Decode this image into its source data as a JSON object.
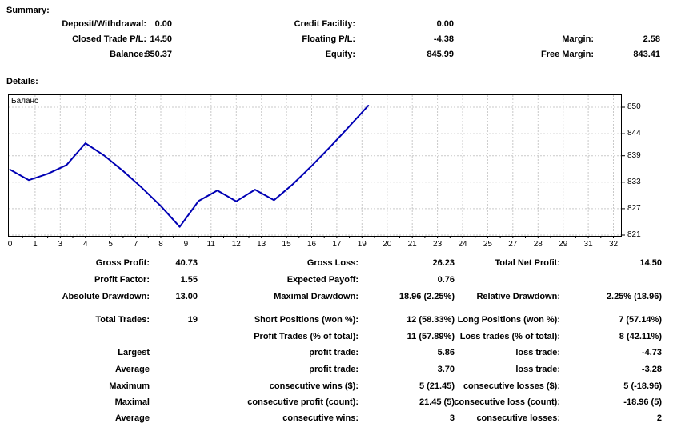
{
  "summary": {
    "heading": "Summary:",
    "col1": [
      {
        "label": "Deposit/Withdrawal:",
        "value": "0.00"
      },
      {
        "label": "Closed Trade P/L:",
        "value": "14.50"
      },
      {
        "label": "Balance:",
        "value": "850.37"
      }
    ],
    "col2": [
      {
        "label": "Credit Facility:",
        "value": "0.00"
      },
      {
        "label": "Floating P/L:",
        "value": "-4.38"
      },
      {
        "label": "Equity:",
        "value": "845.99"
      }
    ],
    "col3": [
      {
        "label": "Margin:",
        "value": "2.58"
      },
      {
        "label": "Free Margin:",
        "value": "843.41"
      }
    ]
  },
  "details": {
    "heading": "Details:",
    "rows": [
      {
        "c1": {
          "label": "Gross Profit:",
          "value": "40.73"
        },
        "c2": {
          "label": "Gross Loss:",
          "value": "26.23"
        },
        "c3": {
          "label": "Total Net Profit:",
          "value": "14.50"
        }
      },
      {
        "c1": {
          "label": "Profit Factor:",
          "value": "1.55"
        },
        "c2": {
          "label": "Expected Payoff:",
          "value": "0.76"
        }
      },
      {
        "c1": {
          "label": "Absolute Drawdown:",
          "value": "13.00"
        },
        "c2": {
          "label": "Maximal Drawdown:",
          "value": "18.96 (2.25%)"
        },
        "c3": {
          "label": "Relative Drawdown:",
          "value": "2.25% (18.96)"
        }
      },
      {
        "c1": {
          "label": "Total Trades:",
          "value": "19"
        },
        "c2": {
          "label": "Short Positions (won %):",
          "value": "12 (58.33%)"
        },
        "c3": {
          "label": "Long Positions (won %):",
          "value": "7 (57.14%)"
        }
      },
      {
        "c2": {
          "label": "Profit Trades (% of total):",
          "value": "11 (57.89%)"
        },
        "c3": {
          "label": "Loss trades (% of total):",
          "value": "8 (42.11%)"
        }
      },
      {
        "c1": {
          "label": "Largest"
        },
        "c2": {
          "label": "profit trade:",
          "value": "5.86"
        },
        "c3": {
          "label": "loss trade:",
          "value": "-4.73"
        }
      },
      {
        "c1": {
          "label": "Average"
        },
        "c2": {
          "label": "profit trade:",
          "value": "3.70"
        },
        "c3": {
          "label": "loss trade:",
          "value": "-3.28"
        }
      },
      {
        "c1": {
          "label": "Maximum"
        },
        "c2": {
          "label": "consecutive wins ($):",
          "value": "5 (21.45)"
        },
        "c3": {
          "label": "consecutive losses ($):",
          "value": "5 (-18.96)"
        }
      },
      {
        "c1": {
          "label": "Maximal"
        },
        "c2": {
          "label": "consecutive profit (count):",
          "value": "21.45 (5)"
        },
        "c3": {
          "label": "consecutive loss (count):",
          "value": "-18.96 (5)"
        }
      },
      {
        "c1": {
          "label": "Average"
        },
        "c2": {
          "label": "consecutive wins:",
          "value": "3"
        },
        "c3": {
          "label": "consecutive losses:",
          "value": "2"
        }
      }
    ]
  },
  "chart_data": {
    "type": "line",
    "series_label": "Баланс",
    "x": [
      0,
      1,
      2,
      3,
      4,
      5,
      6,
      7,
      8,
      9,
      10,
      11,
      12,
      13,
      14,
      15,
      16,
      17,
      18,
      19
    ],
    "balance": [
      835.87,
      833.47,
      834.9,
      836.9,
      841.83,
      839.03,
      835.53,
      831.73,
      827.6,
      822.87,
      828.73,
      831.13,
      828.66,
      831.32,
      828.92,
      832.52,
      836.69,
      841.09,
      845.69,
      850.37
    ],
    "x_axis_labels": [
      "0",
      "1",
      "3",
      "4",
      "5",
      "7",
      "8",
      "9",
      "11",
      "12",
      "13",
      "15",
      "16",
      "17",
      "19",
      "20",
      "21",
      "23",
      "24",
      "25",
      "27",
      "28",
      "29",
      "31",
      "32"
    ],
    "x_max": 32,
    "y_ticks": [
      "850",
      "844",
      "839",
      "833",
      "827",
      "821"
    ],
    "y_range": [
      821,
      850
    ],
    "grid": true,
    "legend_position": "top-left-inside",
    "line_color": "#0000b4",
    "grid_color": "#c9c9c9"
  }
}
